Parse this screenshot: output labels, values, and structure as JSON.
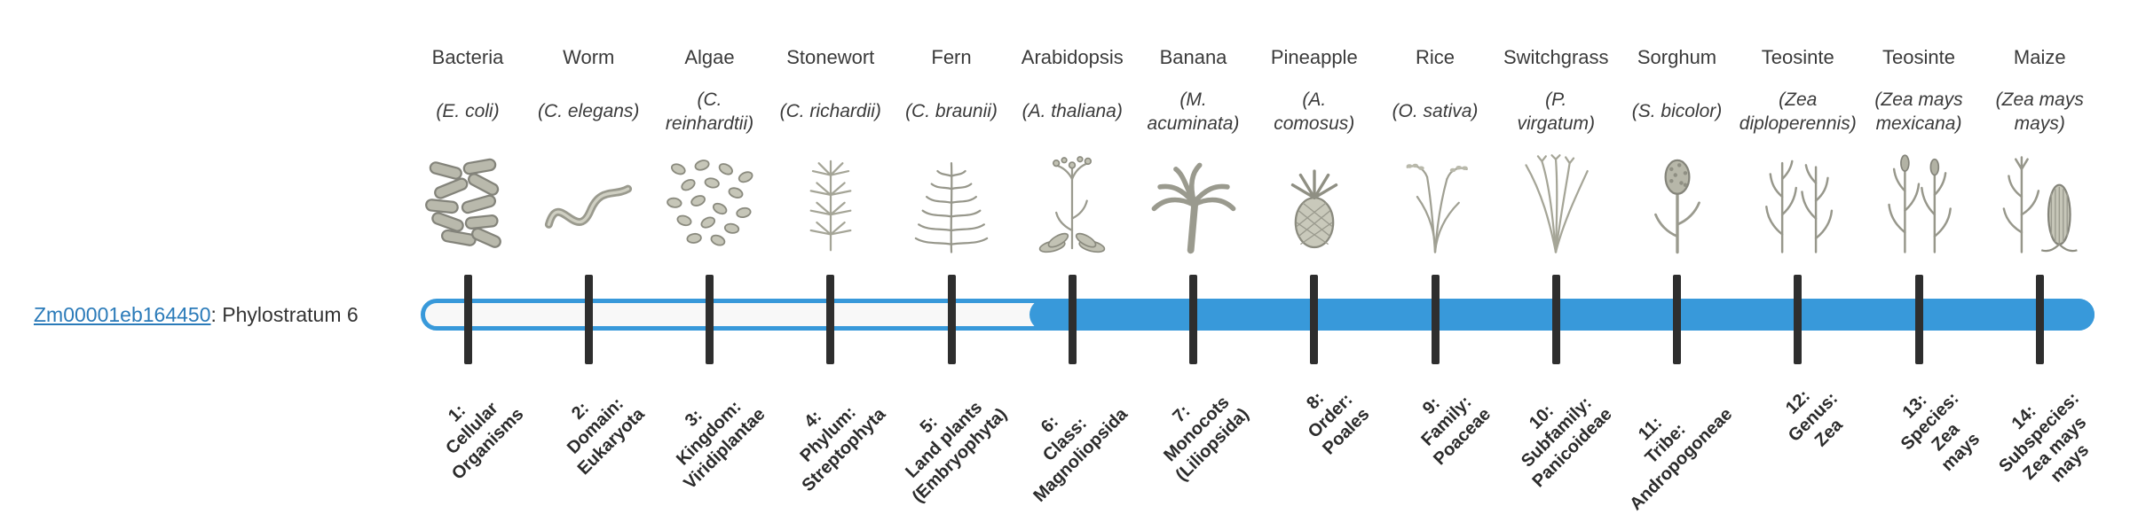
{
  "gene": {
    "id": "Zm00001eb164450",
    "suffix": ": Phylostratum 6",
    "link_color": "#2b7bb9"
  },
  "track": {
    "fill_start_stage": 6,
    "total_stages": 14,
    "blue": "#3899da",
    "empty_fill": "#f8f8f8",
    "tick_color": "#2e2e2e"
  },
  "phylostrata": [
    {
      "stage": 1,
      "name": "Bacteria",
      "latin": "(E. coli)",
      "icon": "bacteria-icon",
      "label": "1:\nCellular\nOrganisms"
    },
    {
      "stage": 2,
      "name": "Worm",
      "latin": "(C. elegans)",
      "icon": "worm-icon",
      "label": "2:\nDomain:\nEukaryota"
    },
    {
      "stage": 3,
      "name": "Algae",
      "latin": "(C.\nreinhardtii)",
      "icon": "algae-icon",
      "label": "3:\nKingdom:\nViridiplantae"
    },
    {
      "stage": 4,
      "name": "Stonewort",
      "latin": "(C. richardii)",
      "icon": "stonewort-icon",
      "label": "4:\nPhylum:\nStreptophyta"
    },
    {
      "stage": 5,
      "name": "Fern",
      "latin": "(C. braunii)",
      "icon": "fern-icon",
      "label": "5:\nLand plants\n(Embryophyta)"
    },
    {
      "stage": 6,
      "name": "Arabidopsis",
      "latin": "(A. thaliana)",
      "icon": "arabidopsis-icon",
      "label": "6:\nClass:\nMagnoliopsida"
    },
    {
      "stage": 7,
      "name": "Banana",
      "latin": "(M.\nacuminata)",
      "icon": "banana-icon",
      "label": "7:\nMonocots\n(Liliopsida)"
    },
    {
      "stage": 8,
      "name": "Pineapple",
      "latin": "(A.\ncomosus)",
      "icon": "pineapple-icon",
      "label": "8:\nOrder:\nPoales"
    },
    {
      "stage": 9,
      "name": "Rice",
      "latin": "(O. sativa)",
      "icon": "rice-icon",
      "label": "9:\nFamily:\nPoaceae"
    },
    {
      "stage": 10,
      "name": "Switchgrass",
      "latin": "(P.\nvirgatum)",
      "icon": "switchgrass-icon",
      "label": "10:\nSubfamily:\nPanicoideae"
    },
    {
      "stage": 11,
      "name": "Sorghum",
      "latin": "(S. bicolor)",
      "icon": "sorghum-icon",
      "label": "11:\nTribe:\nAndropogoneae"
    },
    {
      "stage": 12,
      "name": "Teosinte",
      "latin": "(Zea\ndiploperennis)",
      "icon": "teosinte-diploperennis-icon",
      "label": "12:\nGenus:\nZea"
    },
    {
      "stage": 13,
      "name": "Teosinte",
      "latin": "(Zea mays\nmexicana)",
      "icon": "teosinte-mexicana-icon",
      "label": "13:\nSpecies:\nZea\nmays"
    },
    {
      "stage": 14,
      "name": "Maize",
      "latin": "(Zea mays\nmays)",
      "icon": "maize-icon",
      "label": "14:\nSubspecies:\nZea mays\nmays"
    }
  ]
}
